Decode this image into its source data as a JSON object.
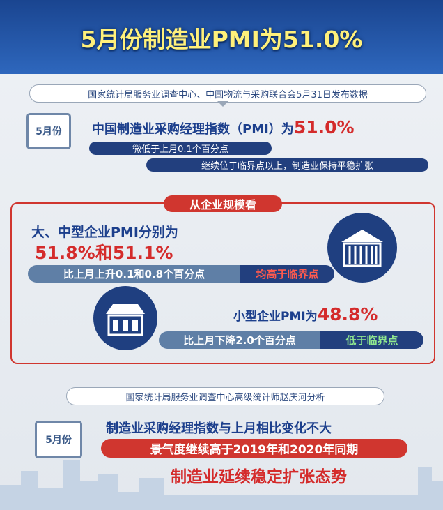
{
  "header": {
    "title": "5月份制造业PMI为51.0%"
  },
  "release": {
    "source": "国家统计局服务业调查中心、中国物流与采购联合会5月31日发布数据",
    "calendar": "5月份",
    "headline": "中国制造业采购经理指数（PMI）为",
    "headline_value": "51.0%",
    "bullets": [
      "微低于上月0.1个百分点",
      "继续位于临界点以上，制造业保持平稳扩张"
    ]
  },
  "scale": {
    "tag": "从企业规模看",
    "large": {
      "label": "大、中型企业PMI分别为",
      "value": "51.8%和51.1%",
      "change": "比上月上升0.1和0.8个百分点",
      "status": "均高于临界点"
    },
    "small": {
      "label": "小型企业PMI为",
      "value": "48.8%",
      "change": "比上月下降2.0个百分点",
      "status": "低于临界点"
    }
  },
  "analysis": {
    "source": "国家统计局服务业调查中心高级统计师赵庆河分析",
    "calendar": "5月份",
    "lines": [
      "制造业采购经理指数与上月相比变化不大",
      "景气度继续高于2019年和2020年同期",
      "制造业延续稳定扩张态势"
    ]
  }
}
